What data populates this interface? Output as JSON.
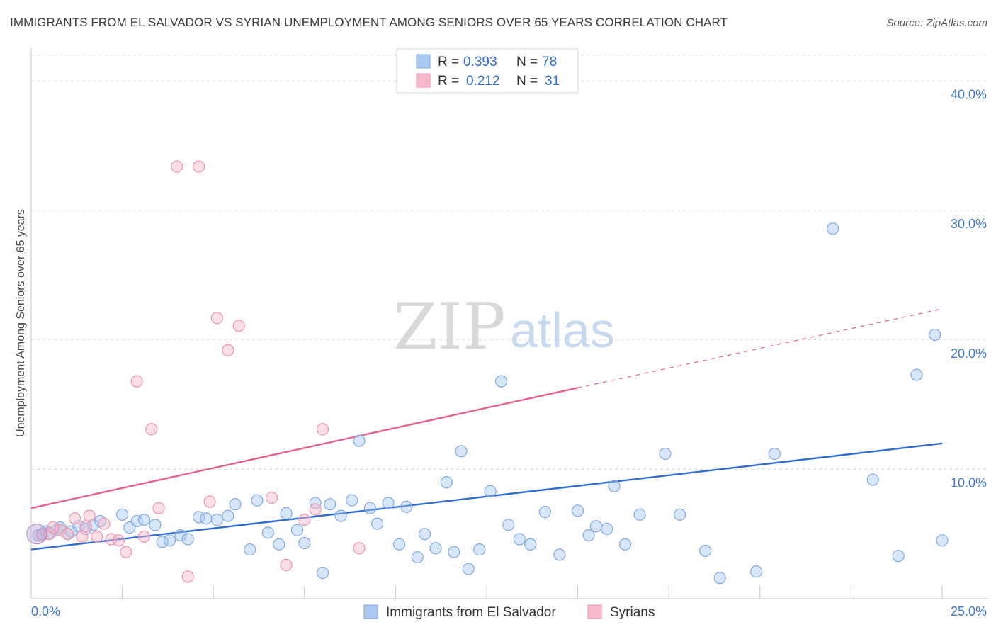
{
  "header": {
    "title": "IMMIGRANTS FROM EL SALVADOR VS SYRIAN UNEMPLOYMENT AMONG SENIORS OVER 65 YEARS CORRELATION CHART",
    "source": "Source: ZipAtlas.com"
  },
  "watermark": {
    "zip": "ZIP",
    "atlas": "atlas"
  },
  "legend": {
    "r_label": "R =",
    "n_label": "N =",
    "rows": [
      {
        "r": "0.393",
        "n": "78"
      },
      {
        "r": "0.212",
        "n": "31"
      }
    ]
  },
  "chart_data": {
    "type": "scatter",
    "xlabel": "",
    "ylabel": "Unemployment Among Seniors over 65 years",
    "xlim": [
      0,
      25
    ],
    "ylim": [
      0,
      42
    ],
    "x_tick_labels": [
      "0.0%",
      "25.0%"
    ],
    "y_ticks": [
      10,
      20,
      30,
      40
    ],
    "y_tick_labels": [
      "10.0%",
      "20.0%",
      "30.0%",
      "40.0%"
    ],
    "grid": true,
    "legend_position": "top-center",
    "series": [
      {
        "name": "Immigrants from El Salvador",
        "color": "#a9c8f2",
        "edge": "#7fa9e0",
        "trend": {
          "x": [
            0,
            25
          ],
          "y": [
            3.8,
            12.0
          ],
          "color": "#2f6cd0"
        },
        "points": [
          [
            0.2,
            4.9
          ],
          [
            0.3,
            5.0
          ],
          [
            0.4,
            5.2
          ],
          [
            0.5,
            5.1
          ],
          [
            0.7,
            5.3
          ],
          [
            0.8,
            5.5
          ],
          [
            1.0,
            5.0
          ],
          [
            1.1,
            5.2
          ],
          [
            1.3,
            5.6
          ],
          [
            1.5,
            5.4
          ],
          [
            1.7,
            5.7
          ],
          [
            1.9,
            6.0
          ],
          [
            2.5,
            6.5
          ],
          [
            2.7,
            5.5
          ],
          [
            2.9,
            6.0
          ],
          [
            3.1,
            6.1
          ],
          [
            3.4,
            5.7
          ],
          [
            3.6,
            4.4
          ],
          [
            3.8,
            4.5
          ],
          [
            4.1,
            4.9
          ],
          [
            4.3,
            4.6
          ],
          [
            4.6,
            6.3
          ],
          [
            4.8,
            6.2
          ],
          [
            5.1,
            6.1
          ],
          [
            5.4,
            6.4
          ],
          [
            5.6,
            7.3
          ],
          [
            6.0,
            3.8
          ],
          [
            6.2,
            7.6
          ],
          [
            6.5,
            5.1
          ],
          [
            6.8,
            4.2
          ],
          [
            7.0,
            6.6
          ],
          [
            7.3,
            5.3
          ],
          [
            7.5,
            4.3
          ],
          [
            7.8,
            7.4
          ],
          [
            8.0,
            2.0
          ],
          [
            8.2,
            7.3
          ],
          [
            8.5,
            6.4
          ],
          [
            8.8,
            7.6
          ],
          [
            9.0,
            12.2
          ],
          [
            9.3,
            7.0
          ],
          [
            9.5,
            5.8
          ],
          [
            9.8,
            7.4
          ],
          [
            10.1,
            4.2
          ],
          [
            10.3,
            7.1
          ],
          [
            10.6,
            3.2
          ],
          [
            10.8,
            5.0
          ],
          [
            11.1,
            3.9
          ],
          [
            11.4,
            9.0
          ],
          [
            11.6,
            3.6
          ],
          [
            11.8,
            11.4
          ],
          [
            12.0,
            2.3
          ],
          [
            12.3,
            3.8
          ],
          [
            12.6,
            8.3
          ],
          [
            12.9,
            16.8
          ],
          [
            13.1,
            5.7
          ],
          [
            13.4,
            4.6
          ],
          [
            13.7,
            4.2
          ],
          [
            14.1,
            6.7
          ],
          [
            14.5,
            3.4
          ],
          [
            15.0,
            6.8
          ],
          [
            15.3,
            4.9
          ],
          [
            15.5,
            5.6
          ],
          [
            15.8,
            5.4
          ],
          [
            16.0,
            8.7
          ],
          [
            16.3,
            4.2
          ],
          [
            16.7,
            6.5
          ],
          [
            17.4,
            11.2
          ],
          [
            17.8,
            6.5
          ],
          [
            18.5,
            3.7
          ],
          [
            18.9,
            1.6
          ],
          [
            19.9,
            2.1
          ],
          [
            20.4,
            11.2
          ],
          [
            22.0,
            28.6
          ],
          [
            23.1,
            9.2
          ],
          [
            23.8,
            3.3
          ],
          [
            24.3,
            17.3
          ],
          [
            24.8,
            20.4
          ],
          [
            25.0,
            4.5
          ]
        ]
      },
      {
        "name": "Syrians",
        "color": "#f7b8ca",
        "edge": "#ec93ad",
        "trend": {
          "x": [
            0,
            15
          ],
          "y": [
            7.0,
            16.3
          ],
          "dashed_to": [
            25,
            22.4
          ],
          "color": "#e0648d"
        },
        "points": [
          [
            0.3,
            4.9
          ],
          [
            0.5,
            5.0
          ],
          [
            0.8,
            5.3
          ],
          [
            1.0,
            5.0
          ],
          [
            1.2,
            6.2
          ],
          [
            1.4,
            4.8
          ],
          [
            1.6,
            6.4
          ],
          [
            1.8,
            4.8
          ],
          [
            2.0,
            5.8
          ],
          [
            2.2,
            4.6
          ],
          [
            2.4,
            4.5
          ],
          [
            2.6,
            3.6
          ],
          [
            2.9,
            16.8
          ],
          [
            3.1,
            4.8
          ],
          [
            3.3,
            13.1
          ],
          [
            3.5,
            7.0
          ],
          [
            4.0,
            33.4
          ],
          [
            4.3,
            1.7
          ],
          [
            4.6,
            33.4
          ],
          [
            4.9,
            7.5
          ],
          [
            5.1,
            21.7
          ],
          [
            5.4,
            19.2
          ],
          [
            5.7,
            21.1
          ],
          [
            6.6,
            7.8
          ],
          [
            7.0,
            2.6
          ],
          [
            7.5,
            6.1
          ],
          [
            7.8,
            6.9
          ],
          [
            8.0,
            13.1
          ],
          [
            9.0,
            3.9
          ],
          [
            0.6,
            5.5
          ],
          [
            1.5,
            5.6
          ]
        ]
      }
    ]
  },
  "bottom_legend": {
    "items": [
      {
        "label": "Immigrants from El Salvador"
      },
      {
        "label": "Syrians"
      }
    ]
  }
}
